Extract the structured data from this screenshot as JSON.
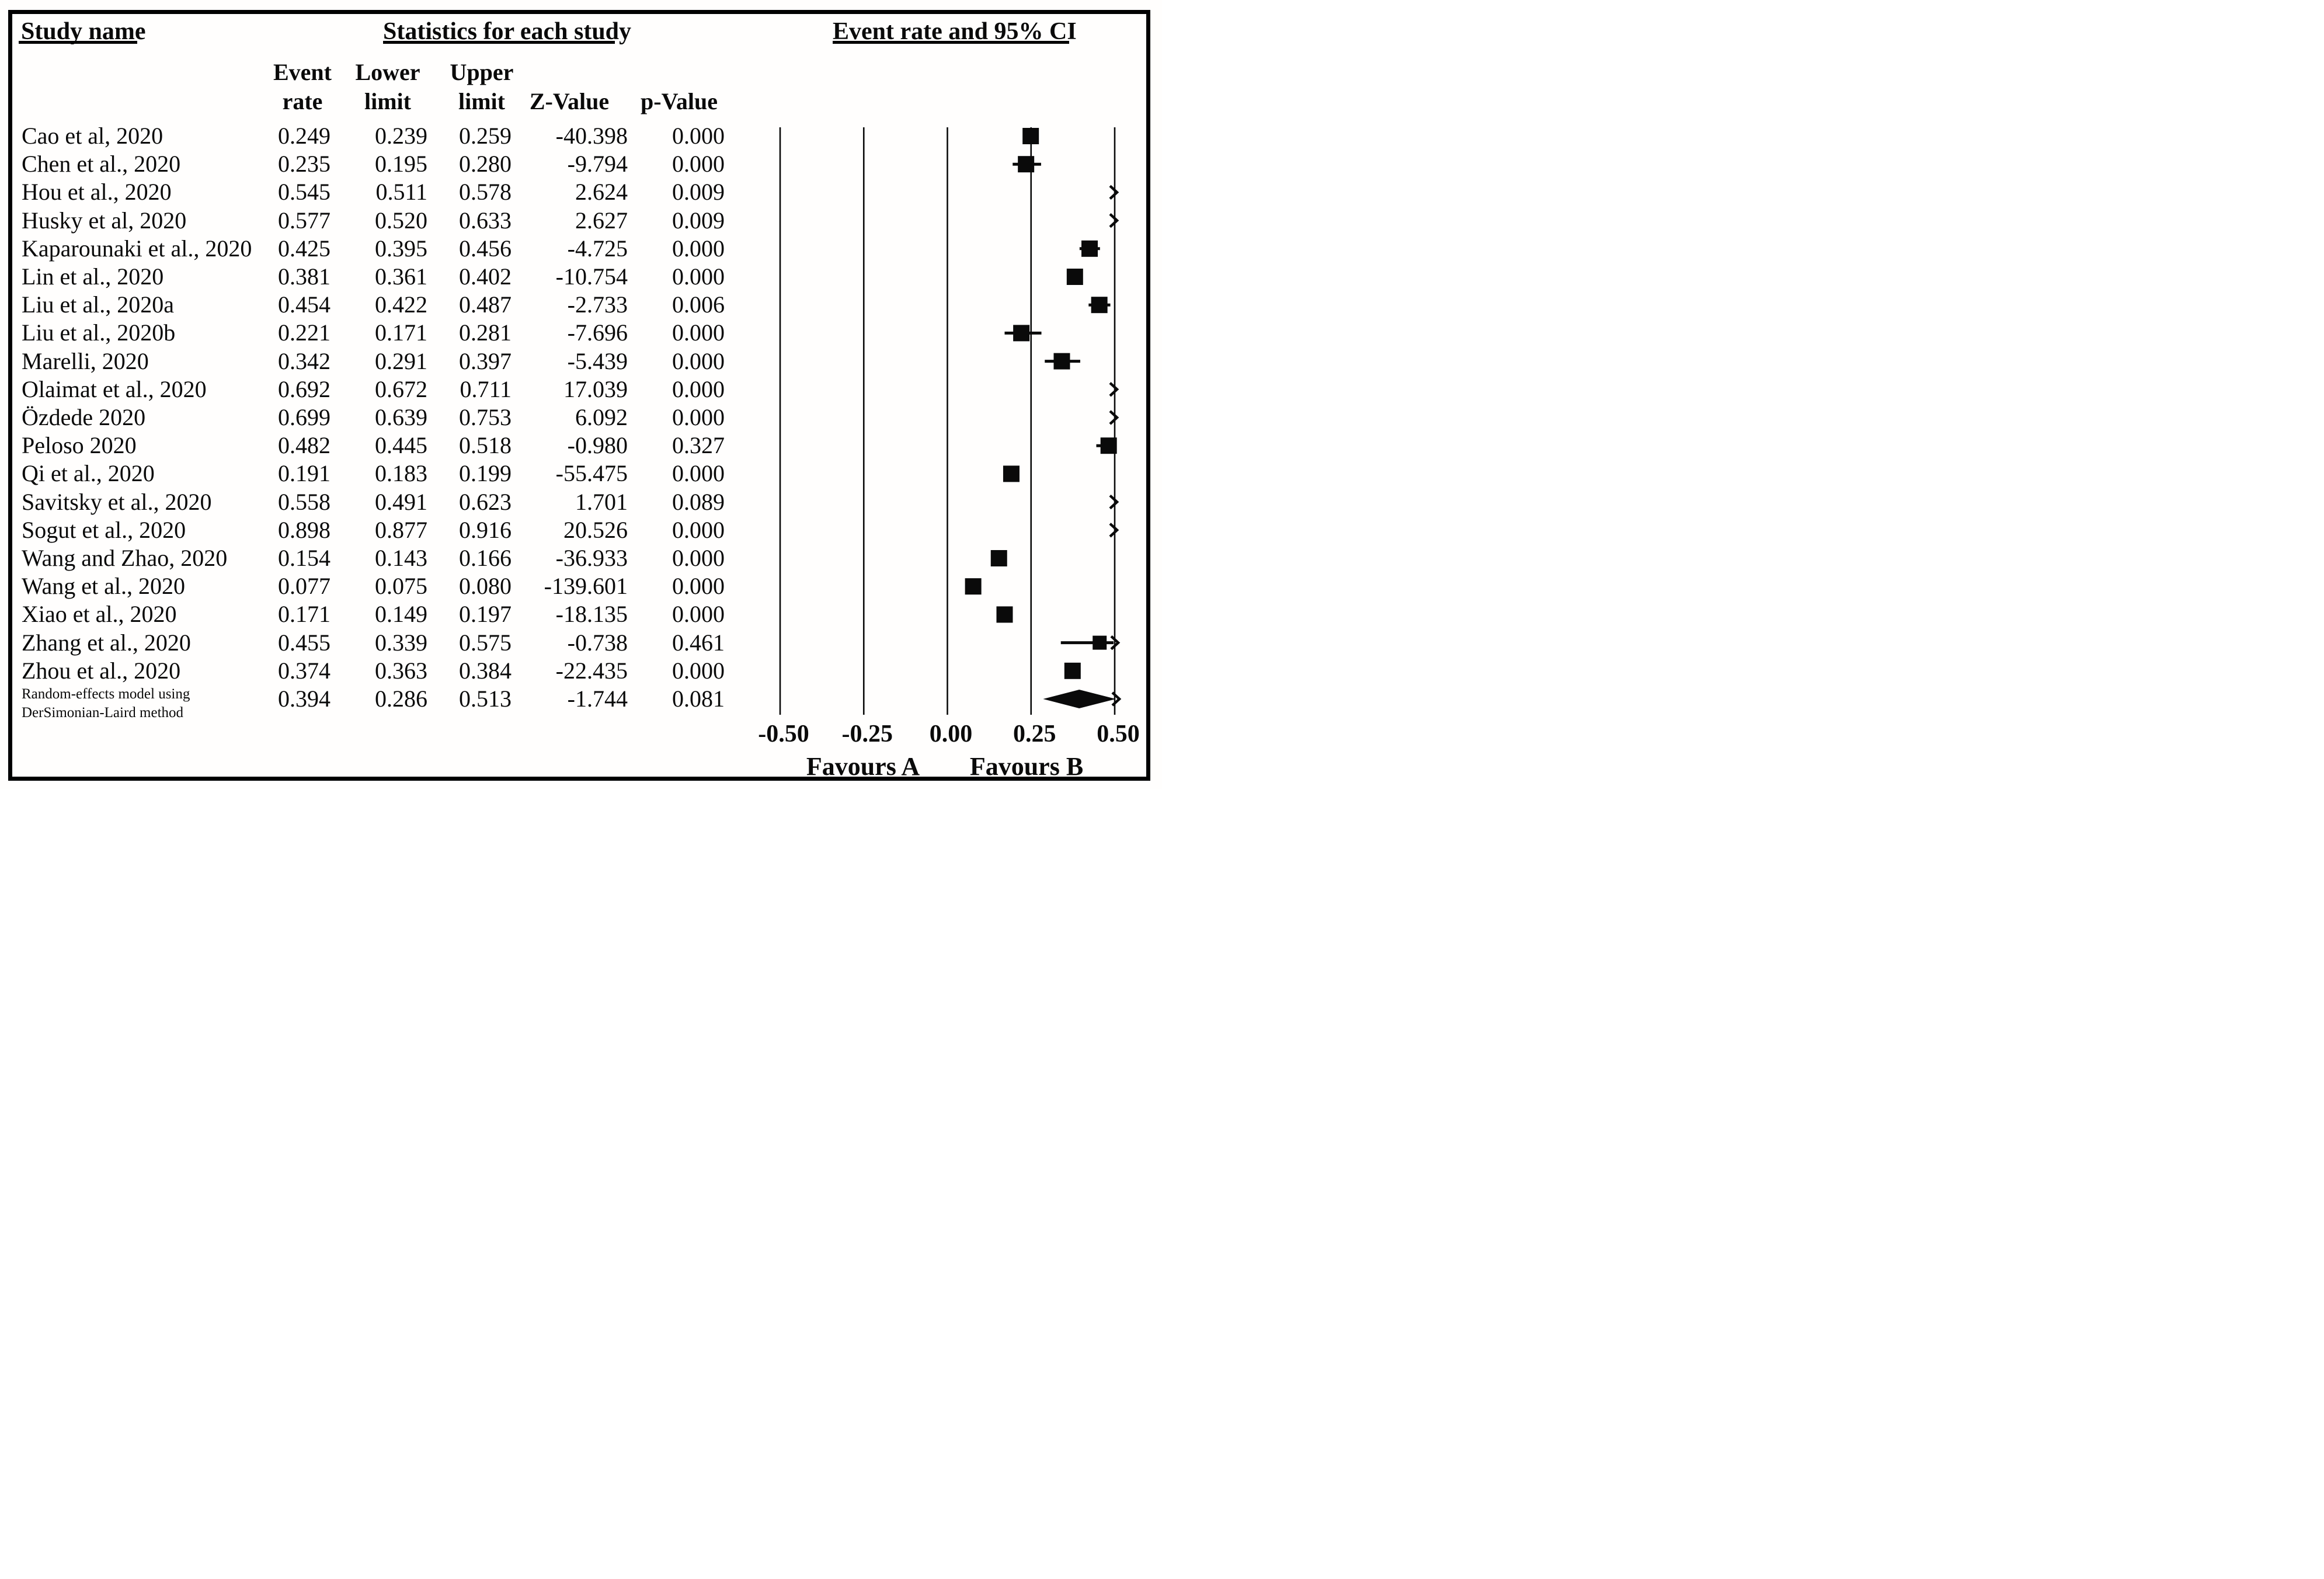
{
  "figure": {
    "background_color": "#ffffff",
    "border_color": "#000000",
    "marker_color": "#0a0a0a",
    "headers": {
      "study": "Study name",
      "statistics": "Statistics for each study",
      "plot": "Event rate and 95% CI",
      "stat_columns_line1": [
        "Event",
        "Lower",
        "Upper"
      ],
      "stat_columns_line2": [
        "rate",
        "limit",
        "limit",
        "Z-Value",
        "p-Value"
      ]
    }
  },
  "chart_data": {
    "type": "forest",
    "title": "Event rate and 95% CI",
    "x_axis": {
      "min": -0.5,
      "max": 0.5,
      "tick_values": [
        -0.5,
        -0.25,
        0,
        0.25,
        0.5
      ],
      "tick_labels": [
        "-0.50",
        "-0.25",
        "0.00",
        "0.25",
        "0.50"
      ],
      "grid": "vertical-lines"
    },
    "footer": {
      "favours_left": "Favours A",
      "favours_right": "Favours B"
    },
    "columns": [
      "Event rate",
      "Lower limit",
      "Upper limit",
      "Z-Value",
      "p-Value"
    ],
    "studies": [
      {
        "name": "Cao et al, 2020",
        "event_rate": "0.249",
        "lower_limit": "0.239",
        "upper_limit": "0.259",
        "z_value": "-40.398",
        "p_value": "0.000"
      },
      {
        "name": "Chen et al., 2020",
        "event_rate": "0.235",
        "lower_limit": "0.195",
        "upper_limit": "0.280",
        "z_value": "-9.794",
        "p_value": "0.000"
      },
      {
        "name": "Hou et al., 2020",
        "event_rate": "0.545",
        "lower_limit": "0.511",
        "upper_limit": "0.578",
        "z_value": "2.624",
        "p_value": "0.009"
      },
      {
        "name": "Husky et al, 2020",
        "event_rate": "0.577",
        "lower_limit": "0.520",
        "upper_limit": "0.633",
        "z_value": "2.627",
        "p_value": "0.009"
      },
      {
        "name": "Kaparounaki et al., 2020",
        "event_rate": "0.425",
        "lower_limit": "0.395",
        "upper_limit": "0.456",
        "z_value": "-4.725",
        "p_value": "0.000"
      },
      {
        "name": "Lin et al., 2020",
        "event_rate": "0.381",
        "lower_limit": "0.361",
        "upper_limit": "0.402",
        "z_value": "-10.754",
        "p_value": "0.000"
      },
      {
        "name": "Liu et al., 2020a",
        "event_rate": "0.454",
        "lower_limit": "0.422",
        "upper_limit": "0.487",
        "z_value": "-2.733",
        "p_value": "0.006"
      },
      {
        "name": "Liu et al., 2020b",
        "event_rate": "0.221",
        "lower_limit": "0.171",
        "upper_limit": "0.281",
        "z_value": "-7.696",
        "p_value": "0.000"
      },
      {
        "name": "Marelli, 2020",
        "event_rate": "0.342",
        "lower_limit": "0.291",
        "upper_limit": "0.397",
        "z_value": "-5.439",
        "p_value": "0.000"
      },
      {
        "name": "Olaimat et al., 2020",
        "event_rate": "0.692",
        "lower_limit": "0.672",
        "upper_limit": "0.711",
        "z_value": "17.039",
        "p_value": "0.000"
      },
      {
        "name": "Özdede  2020",
        "event_rate": "0.699",
        "lower_limit": "0.639",
        "upper_limit": "0.753",
        "z_value": "6.092",
        "p_value": "0.000"
      },
      {
        "name": "Peloso 2020",
        "event_rate": "0.482",
        "lower_limit": "0.445",
        "upper_limit": "0.518",
        "z_value": "-0.980",
        "p_value": "0.327"
      },
      {
        "name": "Qi et al., 2020",
        "event_rate": "0.191",
        "lower_limit": "0.183",
        "upper_limit": "0.199",
        "z_value": "-55.475",
        "p_value": "0.000"
      },
      {
        "name": "Savitsky et al., 2020",
        "event_rate": "0.558",
        "lower_limit": "0.491",
        "upper_limit": "0.623",
        "z_value": "1.701",
        "p_value": "0.089"
      },
      {
        "name": "Sogut et al., 2020",
        "event_rate": "0.898",
        "lower_limit": "0.877",
        "upper_limit": "0.916",
        "z_value": "20.526",
        "p_value": "0.000"
      },
      {
        "name": "Wang and Zhao, 2020",
        "event_rate": "0.154",
        "lower_limit": "0.143",
        "upper_limit": "0.166",
        "z_value": "-36.933",
        "p_value": "0.000"
      },
      {
        "name": "Wang et al., 2020",
        "event_rate": "0.077",
        "lower_limit": "0.075",
        "upper_limit": "0.080",
        "z_value": "-139.601",
        "p_value": "0.000"
      },
      {
        "name": "Xiao et al., 2020",
        "event_rate": "0.171",
        "lower_limit": "0.149",
        "upper_limit": "0.197",
        "z_value": "-18.135",
        "p_value": "0.000"
      },
      {
        "name": "Zhang et al., 2020",
        "event_rate": "0.455",
        "lower_limit": "0.339",
        "upper_limit": "0.575",
        "z_value": "-0.738",
        "p_value": "0.461"
      },
      {
        "name": "Zhou et al., 2020",
        "event_rate": "0.374",
        "lower_limit": "0.363",
        "upper_limit": "0.384",
        "z_value": "-22.435",
        "p_value": "0.000"
      }
    ],
    "summary": {
      "name_line1": "Random-effects model using",
      "name_line2": "DerSimonian-Laird method",
      "event_rate": "0.394",
      "lower_limit": "0.286",
      "upper_limit": "0.513",
      "z_value": "-1.744",
      "p_value": "0.081",
      "marker": "diamond"
    }
  }
}
